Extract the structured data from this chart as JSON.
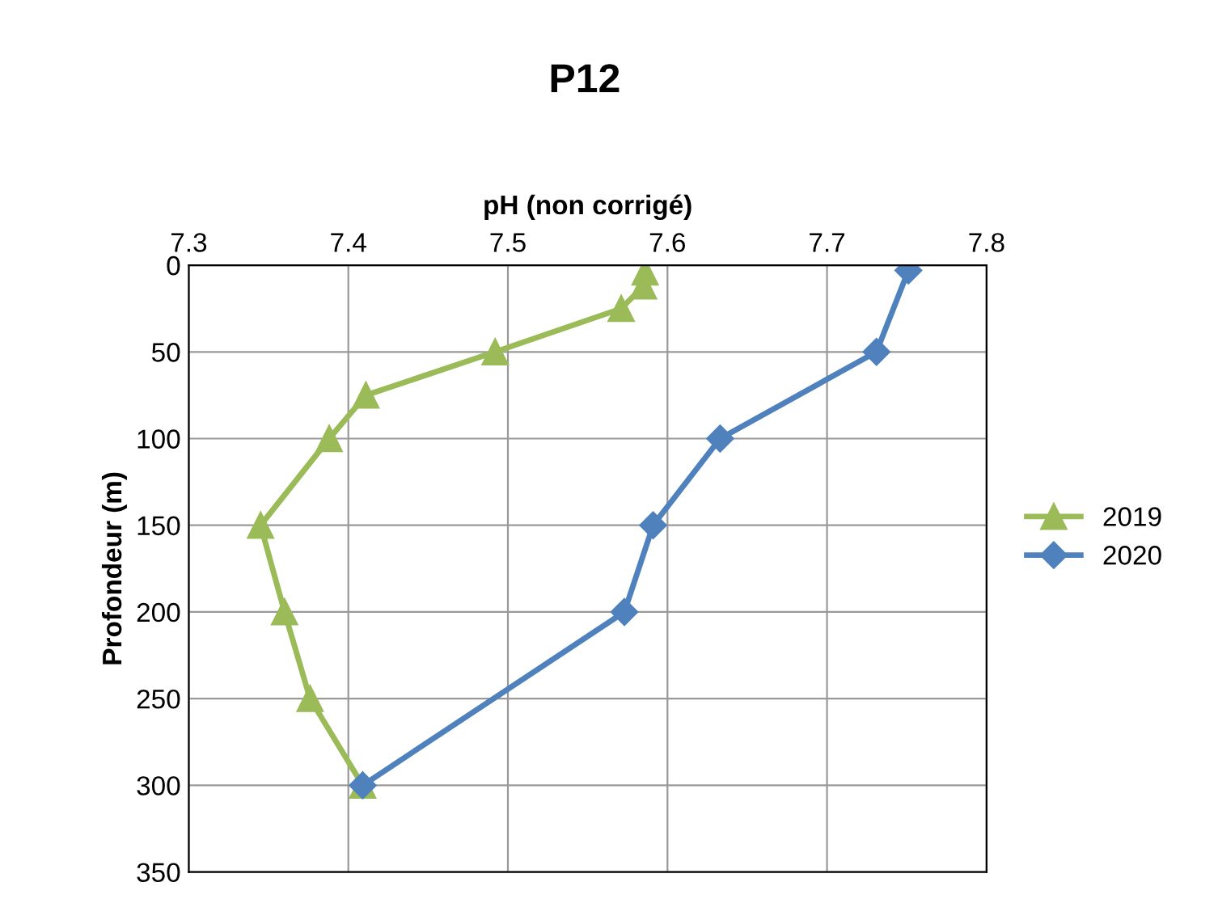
{
  "chart_data": {
    "type": "line",
    "title": "P12",
    "xlabel": "pH (non corrigé)",
    "ylabel": "Profondeur (m)",
    "xlim": [
      7.3,
      7.8
    ],
    "xticks": [
      7.3,
      7.4,
      7.5,
      7.6,
      7.7,
      7.8
    ],
    "ylim": [
      350,
      0
    ],
    "yticks": [
      0,
      50,
      100,
      150,
      200,
      250,
      300,
      350
    ],
    "grid": true,
    "legend": "right",
    "series": [
      {
        "name": "2019",
        "color": "#9bbb59",
        "marker": "triangle",
        "x": [
          7.586,
          7.585,
          7.571,
          7.492,
          7.411,
          7.388,
          7.345,
          7.36,
          7.376,
          7.409
        ],
        "values": [
          4,
          12,
          25,
          50,
          75,
          100,
          150,
          200,
          250,
          300
        ]
      },
      {
        "name": "2020",
        "color": "#4f81bd",
        "marker": "diamond",
        "x": [
          7.751,
          7.731,
          7.633,
          7.591,
          7.573,
          7.409
        ],
        "values": [
          3,
          50,
          100,
          150,
          200,
          300
        ]
      }
    ]
  }
}
